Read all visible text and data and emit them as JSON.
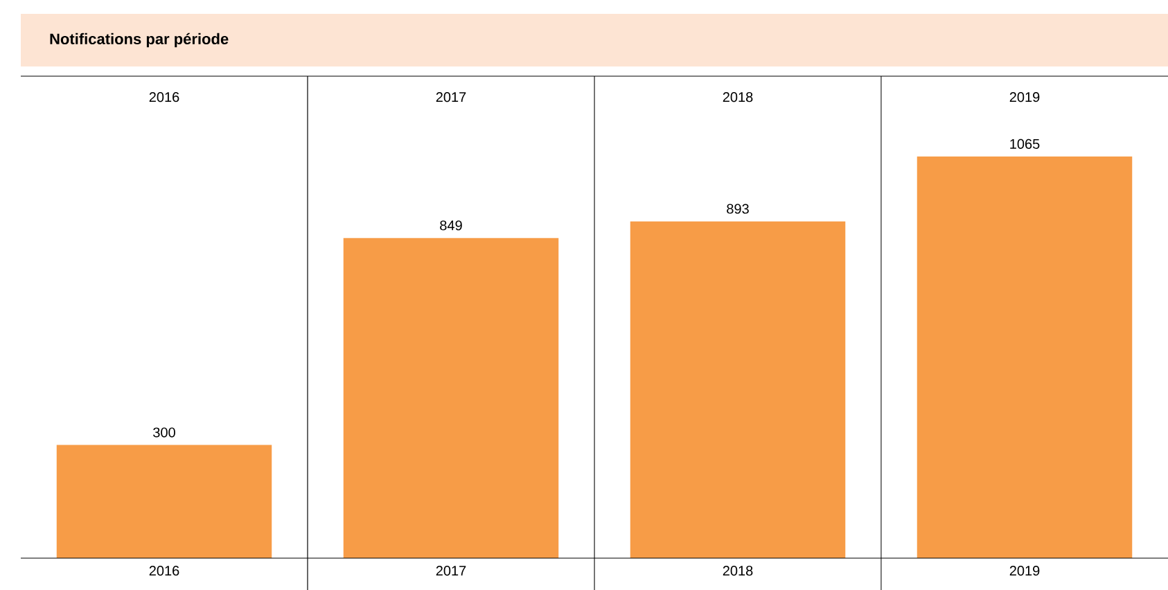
{
  "chart_data": {
    "type": "bar",
    "title": "Notifications par période",
    "categories": [
      "2016",
      "2017",
      "2018",
      "2019"
    ],
    "values": [
      300,
      849,
      893,
      1065
    ],
    "color": "#f79c47",
    "data_labels": true
  }
}
